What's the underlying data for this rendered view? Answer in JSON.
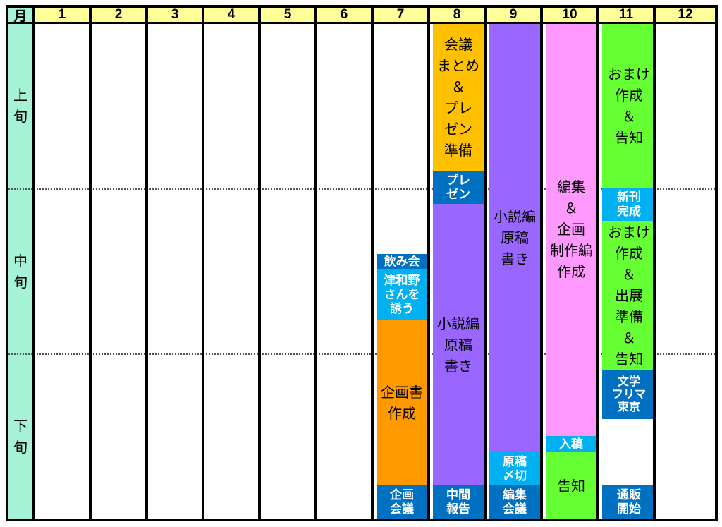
{
  "header": {
    "corner_label": "月",
    "months": [
      "1",
      "2",
      "3",
      "4",
      "5",
      "6",
      "7",
      "8",
      "9",
      "10",
      "11",
      "12"
    ]
  },
  "periods": [
    "上\n旬",
    "中\n旬",
    "下\n旬"
  ],
  "colors": {
    "header_bg": "#ffff99",
    "period_bg": "#a6f2d6",
    "yellow": "#ffc000",
    "blue_dark": "#0070c0",
    "blue_light": "#00b0f0",
    "purple": "#9966ff",
    "pink": "#ff99ff",
    "green": "#66ff33",
    "orange": "#ff9900"
  },
  "tasks": {
    "m7_nomikai": {
      "text": "飲み会"
    },
    "m7_tsuwano": {
      "text": "津和野\nさんを\n誘う"
    },
    "m7_kikakusho": {
      "text": "企画書\n作成"
    },
    "m7_kikaku_kaigi": {
      "text": "企画\n会議"
    },
    "m8_kaigi": {
      "text": "会議\nまとめ\n＆\nプレ\nゼン\n準備"
    },
    "m8_presen": {
      "text": "プレ\nゼン"
    },
    "m8_shosetsu": {
      "text": "小説編\n原稿\n書き"
    },
    "m8_chukan": {
      "text": "中間\n報告"
    },
    "m9_shosetsu": {
      "text": "小説編\n原稿\n書き"
    },
    "m9_shimekiri": {
      "text": "原稿\n〆切"
    },
    "m9_henshu_kaigi": {
      "text": "編集\n会議"
    },
    "m10_henshu": {
      "text": "編集\n＆\n企画\n制作編\n作成"
    },
    "m10_nyuko": {
      "text": "入稿"
    },
    "m10_kokuchi": {
      "text": "告知"
    },
    "m11_omake1": {
      "text": "おまけ\n作成\n＆\n告知"
    },
    "m11_shinkan": {
      "text": "新刊\n完成"
    },
    "m11_omake2": {
      "text": "おまけ\n作成\n＆\n出展\n準備\n＆\n告知"
    },
    "m11_bunfuri": {
      "text": "文学\nフリマ\n東京"
    },
    "m11_tsuhan": {
      "text": "通販\n開始"
    }
  }
}
